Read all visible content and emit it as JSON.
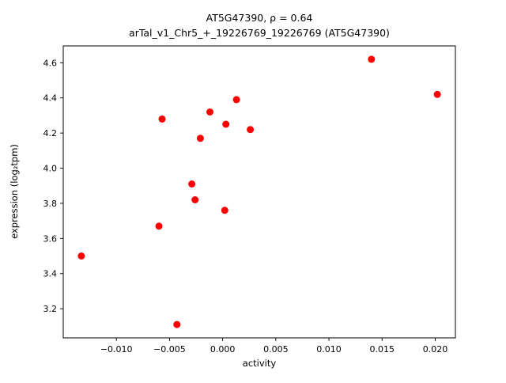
{
  "figure": {
    "background_color": "#ffffff",
    "text_color": "#000000"
  },
  "chart_data": {
    "type": "scatter",
    "title_line1": "AT5G47390, ρ = 0.64",
    "title_line2": "arTal_v1_Chr5_+_19226769_19226769 (AT5G47390)",
    "xlabel": "activity",
    "ylabel": "expression (log₂tpm)",
    "xlim": [
      -0.015,
      0.0219
    ],
    "ylim": [
      3.034,
      4.696
    ],
    "xticks": [
      -0.01,
      -0.005,
      0.0,
      0.005,
      0.01,
      0.015,
      0.02
    ],
    "yticks": [
      3.2,
      3.4,
      3.6,
      3.8,
      4.0,
      4.2,
      4.4,
      4.6
    ],
    "grid": false,
    "legend": null,
    "marker": {
      "shape": "circle",
      "color": "#ff0000",
      "radius": 4.5
    },
    "points": [
      [
        -0.0133,
        3.5
      ],
      [
        -0.006,
        3.67
      ],
      [
        -0.0057,
        4.28
      ],
      [
        -0.0043,
        3.11
      ],
      [
        -0.0029,
        3.91
      ],
      [
        -0.0026,
        3.82
      ],
      [
        -0.0021,
        4.17
      ],
      [
        -0.0012,
        4.32
      ],
      [
        0.0002,
        3.76
      ],
      [
        0.0003,
        4.25
      ],
      [
        0.0013,
        4.39
      ],
      [
        0.0026,
        4.22
      ],
      [
        0.014,
        4.62
      ],
      [
        0.0202,
        4.42
      ]
    ]
  }
}
